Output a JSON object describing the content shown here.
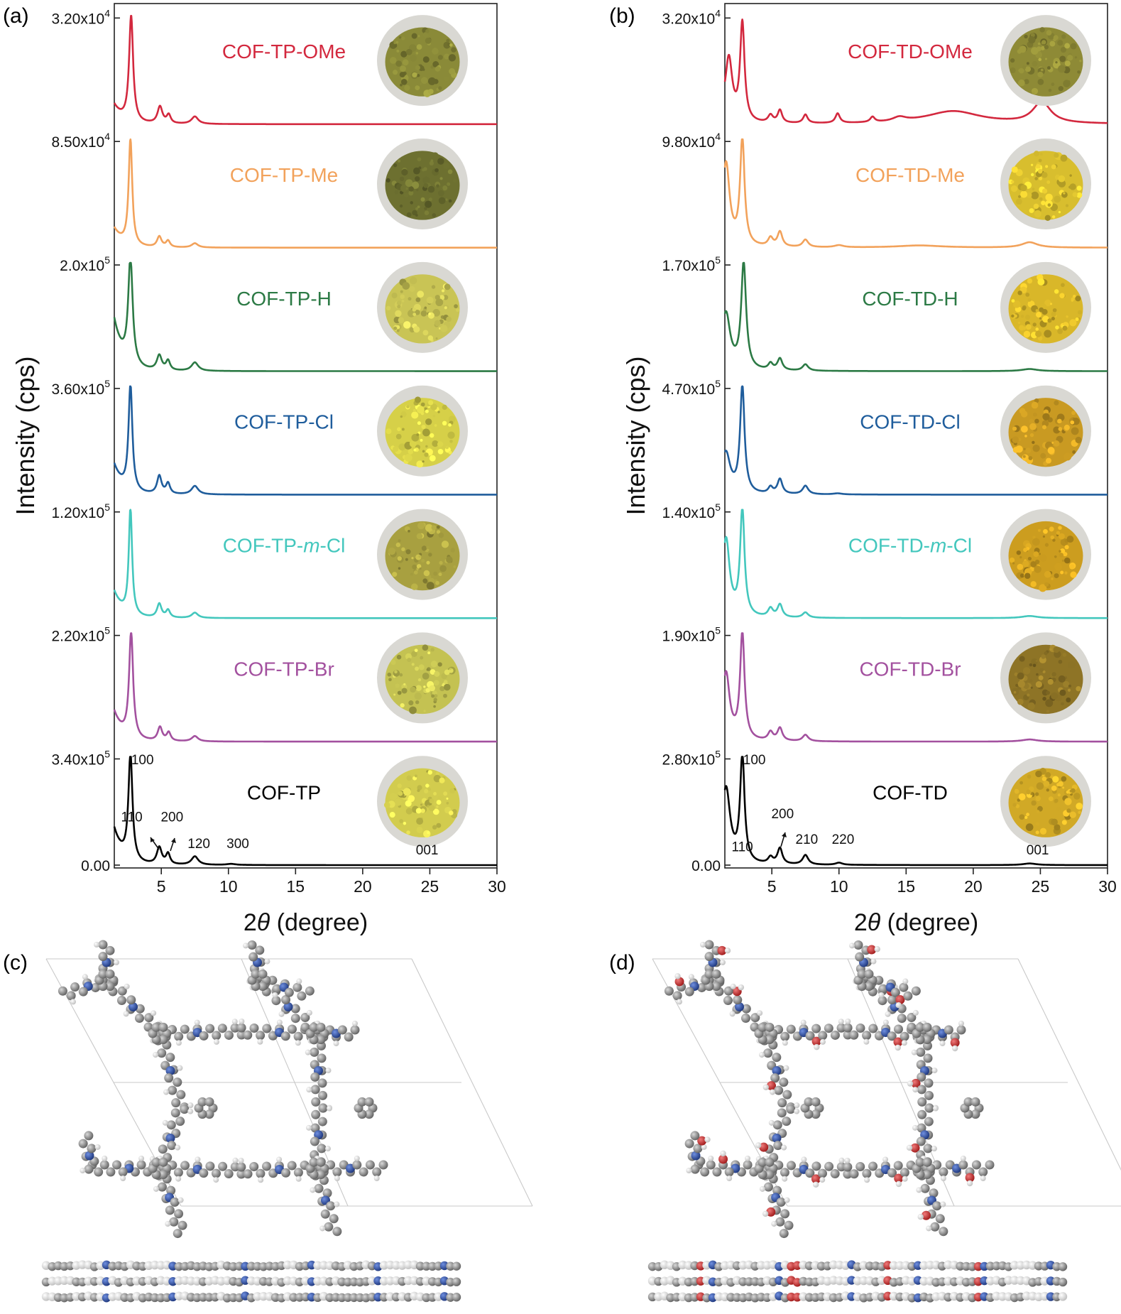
{
  "panels": {
    "a": {
      "label": "(a)"
    },
    "b": {
      "label": "(b)"
    },
    "c": {
      "label": "(c)"
    },
    "d": {
      "label": "(d)"
    }
  },
  "chart_data": [
    {
      "type": "line",
      "panel": "a",
      "xlabel_prefix": "2",
      "xlabel_symbol": "θ",
      "xlabel_suffix": " (degree)",
      "ylabel": "Intensity (cps)",
      "xlim": [
        1.5,
        30
      ],
      "xticks": [
        5,
        10,
        15,
        20,
        25,
        30
      ],
      "grid": false,
      "legend": "none",
      "series": [
        {
          "name": "COF-TP-OMe",
          "ymax_label": "3.20x10",
          "ymax_exp": "4",
          "color": "#d3283e",
          "peaks": [
            [
              2.75,
              1.0,
              0.18
            ],
            [
              4.9,
              0.16,
              0.22
            ],
            [
              5.55,
              0.08,
              0.18
            ],
            [
              7.5,
              0.07,
              0.3
            ]
          ],
          "bg0": 0.18
        },
        {
          "name": "COF-TP-Me",
          "ymax_label": "8.50x10",
          "ymax_exp": "4",
          "color": "#f2a25b",
          "peaks": [
            [
              2.7,
              1.0,
              0.16
            ],
            [
              4.85,
              0.1,
              0.2
            ],
            [
              5.5,
              0.06,
              0.18
            ],
            [
              7.5,
              0.04,
              0.28
            ]
          ],
          "bg0": 0.18
        },
        {
          "name": "COF-TP-H",
          "ymax_label": "2.0x10",
          "ymax_exp": "5",
          "color": "#2c7a45",
          "peaks": [
            [
              2.7,
              1.0,
              0.2
            ],
            [
              4.85,
              0.14,
              0.22
            ],
            [
              5.5,
              0.09,
              0.18
            ],
            [
              7.5,
              0.08,
              0.3
            ]
          ],
          "bg0": 0.48
        },
        {
          "name": "COF-TP-Cl",
          "ymax_label": "3.60x10",
          "ymax_exp": "5",
          "color": "#1f5d9c",
          "peaks": [
            [
              2.7,
              1.0,
              0.17
            ],
            [
              4.85,
              0.17,
              0.2
            ],
            [
              5.5,
              0.1,
              0.18
            ],
            [
              7.5,
              0.08,
              0.3
            ]
          ],
          "bg0": 0.28
        },
        {
          "name": "COF-TP-",
          "name_italic": "m",
          "name_suffix": "-Cl",
          "ymax_label": "1.20x10",
          "ymax_exp": "5",
          "color": "#43c7bd",
          "peaks": [
            [
              2.7,
              1.0,
              0.15
            ],
            [
              4.85,
              0.13,
              0.2
            ],
            [
              5.5,
              0.07,
              0.18
            ],
            [
              7.5,
              0.05,
              0.28
            ]
          ],
          "bg0": 0.25
        },
        {
          "name": "COF-TP-Br",
          "ymax_label": "2.20x10",
          "ymax_exp": "5",
          "color": "#a3519f",
          "peaks": [
            [
              2.75,
              1.0,
              0.18
            ],
            [
              4.9,
              0.13,
              0.2
            ],
            [
              5.55,
              0.08,
              0.18
            ],
            [
              7.5,
              0.05,
              0.28
            ]
          ],
          "bg0": 0.28
        },
        {
          "name": "COF-TP",
          "ymax_label": "3.40x10",
          "ymax_exp": "5",
          "ymin_label": "0.00",
          "color": "#000000",
          "peaks": [
            [
              2.7,
              1.0,
              0.18
            ],
            [
              4.85,
              0.16,
              0.22
            ],
            [
              5.5,
              0.1,
              0.18
            ],
            [
              7.5,
              0.08,
              0.3
            ],
            [
              10.2,
              0.01,
              0.4
            ]
          ],
          "bg0": 0.34,
          "annotations": [
            {
              "text": "100",
              "x": 3.6,
              "y": 0.95
            },
            {
              "text": "110",
              "x": 2.8,
              "y": 0.41
            },
            {
              "text": "200",
              "x": 5.8,
              "y": 0.41
            },
            {
              "text": "120",
              "x": 7.8,
              "y": 0.16
            },
            {
              "text": "300",
              "x": 10.7,
              "y": 0.16
            },
            {
              "text": "001",
              "x": 24.8,
              "y": 0.1
            }
          ]
        }
      ]
    },
    {
      "type": "line",
      "panel": "b",
      "xlabel_prefix": "2",
      "xlabel_symbol": "θ",
      "xlabel_suffix": " (degree)",
      "ylabel": "Intensity (cps)",
      "xlim": [
        1.5,
        30
      ],
      "xticks": [
        5,
        10,
        15,
        20,
        25,
        30
      ],
      "grid": false,
      "legend": "none",
      "series": [
        {
          "name": "COF-TD-OMe",
          "ymax_label": "3.20x10",
          "ymax_exp": "4",
          "color": "#d3283e",
          "peaks": [
            [
              1.8,
              0.55,
              0.3
            ],
            [
              2.8,
              0.92,
              0.2
            ],
            [
              4.9,
              0.07,
              0.22
            ],
            [
              5.6,
              0.12,
              0.2
            ],
            [
              7.5,
              0.08,
              0.2
            ],
            [
              9.9,
              0.09,
              0.2
            ],
            [
              12.5,
              0.05,
              0.2
            ],
            [
              14.5,
              0.04,
              0.6
            ],
            [
              18.5,
              0.12,
              2.5
            ],
            [
              25.1,
              0.2,
              0.8
            ]
          ],
          "bg0": 0.1
        },
        {
          "name": "COF-TD-Me",
          "ymax_label": "9.80x10",
          "ymax_exp": "4",
          "color": "#f2a25b",
          "peaks": [
            [
              1.6,
              0.7,
              0.3
            ],
            [
              2.8,
              1.0,
              0.2
            ],
            [
              4.9,
              0.08,
              0.22
            ],
            [
              5.6,
              0.14,
              0.22
            ],
            [
              7.5,
              0.07,
              0.25
            ],
            [
              10,
              0.02,
              0.4
            ],
            [
              16,
              0.02,
              2
            ],
            [
              24.2,
              0.05,
              0.7
            ]
          ],
          "bg0": 0.1
        },
        {
          "name": "COF-TD-H",
          "ymax_label": "1.70x10",
          "ymax_exp": "5",
          "color": "#2c7a45",
          "peaks": [
            [
              1.6,
              0.45,
              0.35
            ],
            [
              2.9,
              1.0,
              0.22
            ],
            [
              4.9,
              0.06,
              0.2
            ],
            [
              5.6,
              0.11,
              0.22
            ],
            [
              7.5,
              0.06,
              0.25
            ],
            [
              24.2,
              0.02,
              0.7
            ]
          ],
          "bg0": 0.1
        },
        {
          "name": "COF-TD-Cl",
          "ymax_label": "4.70x10",
          "ymax_exp": "5",
          "color": "#1f5d9c",
          "peaks": [
            [
              1.6,
              0.3,
              0.35
            ],
            [
              2.8,
              1.0,
              0.2
            ],
            [
              4.9,
              0.06,
              0.2
            ],
            [
              5.6,
              0.14,
              0.22
            ],
            [
              7.5,
              0.08,
              0.25
            ],
            [
              9.9,
              0.01,
              0.4
            ]
          ],
          "bg0": 0.1
        },
        {
          "name": "COF-TD-",
          "name_italic": "m",
          "name_suffix": "-Cl",
          "ymax_label": "1.40x10",
          "ymax_exp": "5",
          "color": "#43c7bd",
          "peaks": [
            [
              1.6,
              0.65,
              0.3
            ],
            [
              2.8,
              1.0,
              0.2
            ],
            [
              4.9,
              0.08,
              0.22
            ],
            [
              5.6,
              0.12,
              0.22
            ],
            [
              7.5,
              0.05,
              0.25
            ],
            [
              24.2,
              0.02,
              0.7
            ]
          ],
          "bg0": 0.1
        },
        {
          "name": "COF-TD-Br",
          "ymax_label": "1.90x10",
          "ymax_exp": "5",
          "color": "#a3519f",
          "peaks": [
            [
              1.6,
              0.55,
              0.3
            ],
            [
              2.8,
              1.0,
              0.2
            ],
            [
              4.9,
              0.08,
              0.22
            ],
            [
              5.6,
              0.12,
              0.22
            ],
            [
              7.5,
              0.06,
              0.25
            ],
            [
              24.2,
              0.02,
              0.7
            ]
          ],
          "bg0": 0.1
        },
        {
          "name": "COF-TD",
          "ymax_label": "2.80x10",
          "ymax_exp": "5",
          "ymin_label": "0.00",
          "color": "#000000",
          "peaks": [
            [
              1.6,
              0.63,
              0.35
            ],
            [
              2.8,
              1.0,
              0.2
            ],
            [
              4.9,
              0.06,
              0.22
            ],
            [
              5.6,
              0.15,
              0.22
            ],
            [
              7.5,
              0.09,
              0.25
            ],
            [
              10,
              0.02,
              0.3
            ],
            [
              24.2,
              0.015,
              0.6
            ]
          ],
          "bg0": 0.1,
          "annotations": [
            {
              "text": "100",
              "x": 3.7,
              "y": 0.95
            },
            {
              "text": "110",
              "x": 2.8,
              "y": 0.13
            },
            {
              "text": "200",
              "x": 5.8,
              "y": 0.44
            },
            {
              "text": "210",
              "x": 7.6,
              "y": 0.2
            },
            {
              "text": "220",
              "x": 10.3,
              "y": 0.2
            },
            {
              "text": "001",
              "x": 24.8,
              "y": 0.1
            }
          ]
        }
      ]
    }
  ],
  "sample_photo_colors": {
    "a": [
      "#8a8a38",
      "#6d7030",
      "#c9c455",
      "#d6d048",
      "#a8a040",
      "#c4c252",
      "#d2cc4e"
    ],
    "b": [
      "#8e8a36",
      "#d8be2e",
      "#d9b729",
      "#c99a22",
      "#cc9d1f",
      "#8e7426",
      "#d1a926"
    ]
  },
  "structures": {
    "c": {
      "model": "COF-TP",
      "atom_colors": {
        "carbon": "#8c8c8c",
        "hydrogen": "#f0f0f0",
        "nitrogen": "#2a4fa8"
      }
    },
    "d": {
      "model": "COF-TD",
      "atom_colors": {
        "carbon": "#8c8c8c",
        "hydrogen": "#f0f0f0",
        "nitrogen": "#2a4fa8",
        "oxygen": "#d42a2a"
      }
    }
  }
}
